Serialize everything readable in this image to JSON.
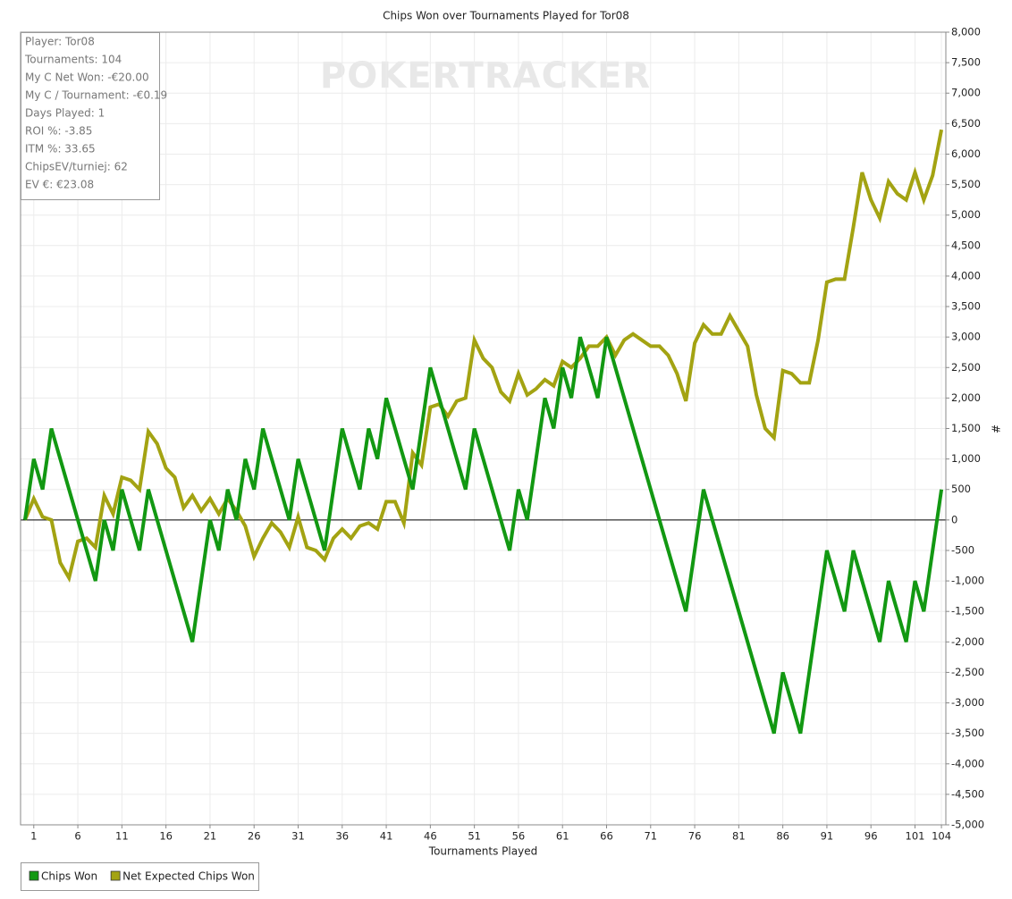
{
  "chart_data": {
    "type": "line",
    "title": "Chips Won over Tournaments Played for Tor08",
    "watermark": "POKERTRACKER",
    "xlabel": "Tournaments Played",
    "ylabel": "#",
    "info": [
      "Player: Tor08",
      "Tournaments: 104",
      "My C Net Won: -€20.00",
      "My C / Tournament: -€0.19",
      "Days Played: 1",
      "ROI %: -3.85",
      "ITM %: 33.65",
      "ChipsEV/turniej: 62",
      "EV €: €23.08"
    ],
    "x": [
      0,
      1,
      2,
      3,
      4,
      5,
      6,
      7,
      8,
      9,
      10,
      11,
      12,
      13,
      14,
      15,
      16,
      17,
      18,
      19,
      20,
      21,
      22,
      23,
      24,
      25,
      26,
      27,
      28,
      29,
      30,
      31,
      32,
      33,
      34,
      35,
      36,
      37,
      38,
      39,
      40,
      41,
      42,
      43,
      44,
      45,
      46,
      47,
      48,
      49,
      50,
      51,
      52,
      53,
      54,
      55,
      56,
      57,
      58,
      59,
      60,
      61,
      62,
      63,
      64,
      65,
      66,
      67,
      68,
      69,
      70,
      71,
      72,
      73,
      74,
      75,
      76,
      77,
      78,
      79,
      80,
      81,
      82,
      83,
      84,
      85,
      86,
      87,
      88,
      89,
      90,
      91,
      92,
      93,
      94,
      95,
      96,
      97,
      98,
      99,
      100,
      101,
      102,
      103,
      104
    ],
    "series": [
      {
        "name": "Chips Won",
        "color": "#129812",
        "values": [
          0,
          1000,
          500,
          1500,
          1000,
          500,
          0,
          -500,
          -1000,
          0,
          -500,
          500,
          0,
          -500,
          500,
          0,
          -500,
          -1000,
          -1500,
          -2000,
          -1000,
          0,
          -500,
          500,
          0,
          1000,
          500,
          1500,
          1000,
          500,
          0,
          1000,
          500,
          0,
          -500,
          500,
          1500,
          1000,
          500,
          1500,
          1000,
          2000,
          1500,
          1000,
          500,
          1500,
          2500,
          2000,
          1500,
          1000,
          500,
          1500,
          1000,
          500,
          0,
          -500,
          500,
          0,
          1000,
          2000,
          1500,
          2500,
          2000,
          3000,
          2500,
          2000,
          3000,
          2500,
          2000,
          1500,
          1000,
          500,
          0,
          -500,
          -1000,
          -1500,
          -500,
          500,
          0,
          -500,
          -1000,
          -1500,
          -2000,
          -2500,
          -3000,
          -3500,
          -2500,
          -3000,
          -3500,
          -2500,
          -1500,
          -500,
          -1000,
          -1500,
          -500,
          -1000,
          -1500,
          -2000,
          -1000,
          -1500,
          -2000,
          -1000,
          -1500,
          -500,
          500
        ]
      },
      {
        "name": "Net Expected Chips Won",
        "color": "#a3a312",
        "values": [
          0,
          350,
          50,
          0,
          -700,
          -950,
          -350,
          -300,
          -450,
          400,
          100,
          700,
          650,
          500,
          1450,
          1250,
          850,
          700,
          200,
          400,
          150,
          350,
          100,
          350,
          150,
          -100,
          -600,
          -300,
          -50,
          -200,
          -450,
          50,
          -450,
          -500,
          -650,
          -300,
          -150,
          -300,
          -100,
          -50,
          -150,
          300,
          300,
          -50,
          1100,
          900,
          1850,
          1900,
          1700,
          1950,
          2000,
          2950,
          2650,
          2500,
          2100,
          1950,
          2400,
          2050,
          2150,
          2300,
          2200,
          2600,
          2500,
          2650,
          2850,
          2850,
          3000,
          2700,
          2950,
          3050,
          2950,
          2850,
          2850,
          2700,
          2400,
          1950,
          2900,
          3200,
          3050,
          3050,
          3350,
          3100,
          2850,
          2050,
          1500,
          1350,
          2450,
          2400,
          2250,
          2250,
          2950,
          3900,
          3950,
          3950,
          4800,
          5700,
          5250,
          4950,
          5550,
          5350,
          5250,
          5700,
          5250,
          5650,
          6400
        ]
      }
    ],
    "xlim": [
      -0.5,
      104.5
    ],
    "xticks": [
      1,
      6,
      11,
      16,
      21,
      26,
      31,
      36,
      41,
      46,
      51,
      56,
      61,
      66,
      71,
      76,
      81,
      86,
      91,
      96,
      101,
      104
    ],
    "ylim": [
      -5000,
      8000
    ],
    "yticks": [
      {
        "value": 8000,
        "label": "8,000"
      },
      {
        "value": 7500,
        "label": "7,500"
      },
      {
        "value": 7000,
        "label": "7,000"
      },
      {
        "value": 6500,
        "label": "6,500"
      },
      {
        "value": 6000,
        "label": "6,000"
      },
      {
        "value": 5500,
        "label": "5,500"
      },
      {
        "value": 5000,
        "label": "5,000"
      },
      {
        "value": 4500,
        "label": "4,500"
      },
      {
        "value": 4000,
        "label": "4,000"
      },
      {
        "value": 3500,
        "label": "3,500"
      },
      {
        "value": 3000,
        "label": "3,000"
      },
      {
        "value": 2500,
        "label": "2,500"
      },
      {
        "value": 2000,
        "label": "2,000"
      },
      {
        "value": 1500,
        "label": "1,500"
      },
      {
        "value": 1000,
        "label": "1,000"
      },
      500,
      0,
      -500,
      {
        "value": -1000,
        "label": "-1,000"
      },
      {
        "value": -1500,
        "label": "-1,500"
      },
      {
        "value": -2000,
        "label": "-2,000"
      },
      {
        "value": -2500,
        "label": "-2,500"
      },
      {
        "value": -3000,
        "label": "-3,000"
      },
      {
        "value": -3500,
        "label": "-3,500"
      },
      {
        "value": -4000,
        "label": "-4,000"
      },
      {
        "value": -4500,
        "label": "-4,500"
      },
      {
        "value": -5000,
        "label": "-5,000"
      }
    ],
    "grid": true,
    "legend": "bottom-left"
  }
}
